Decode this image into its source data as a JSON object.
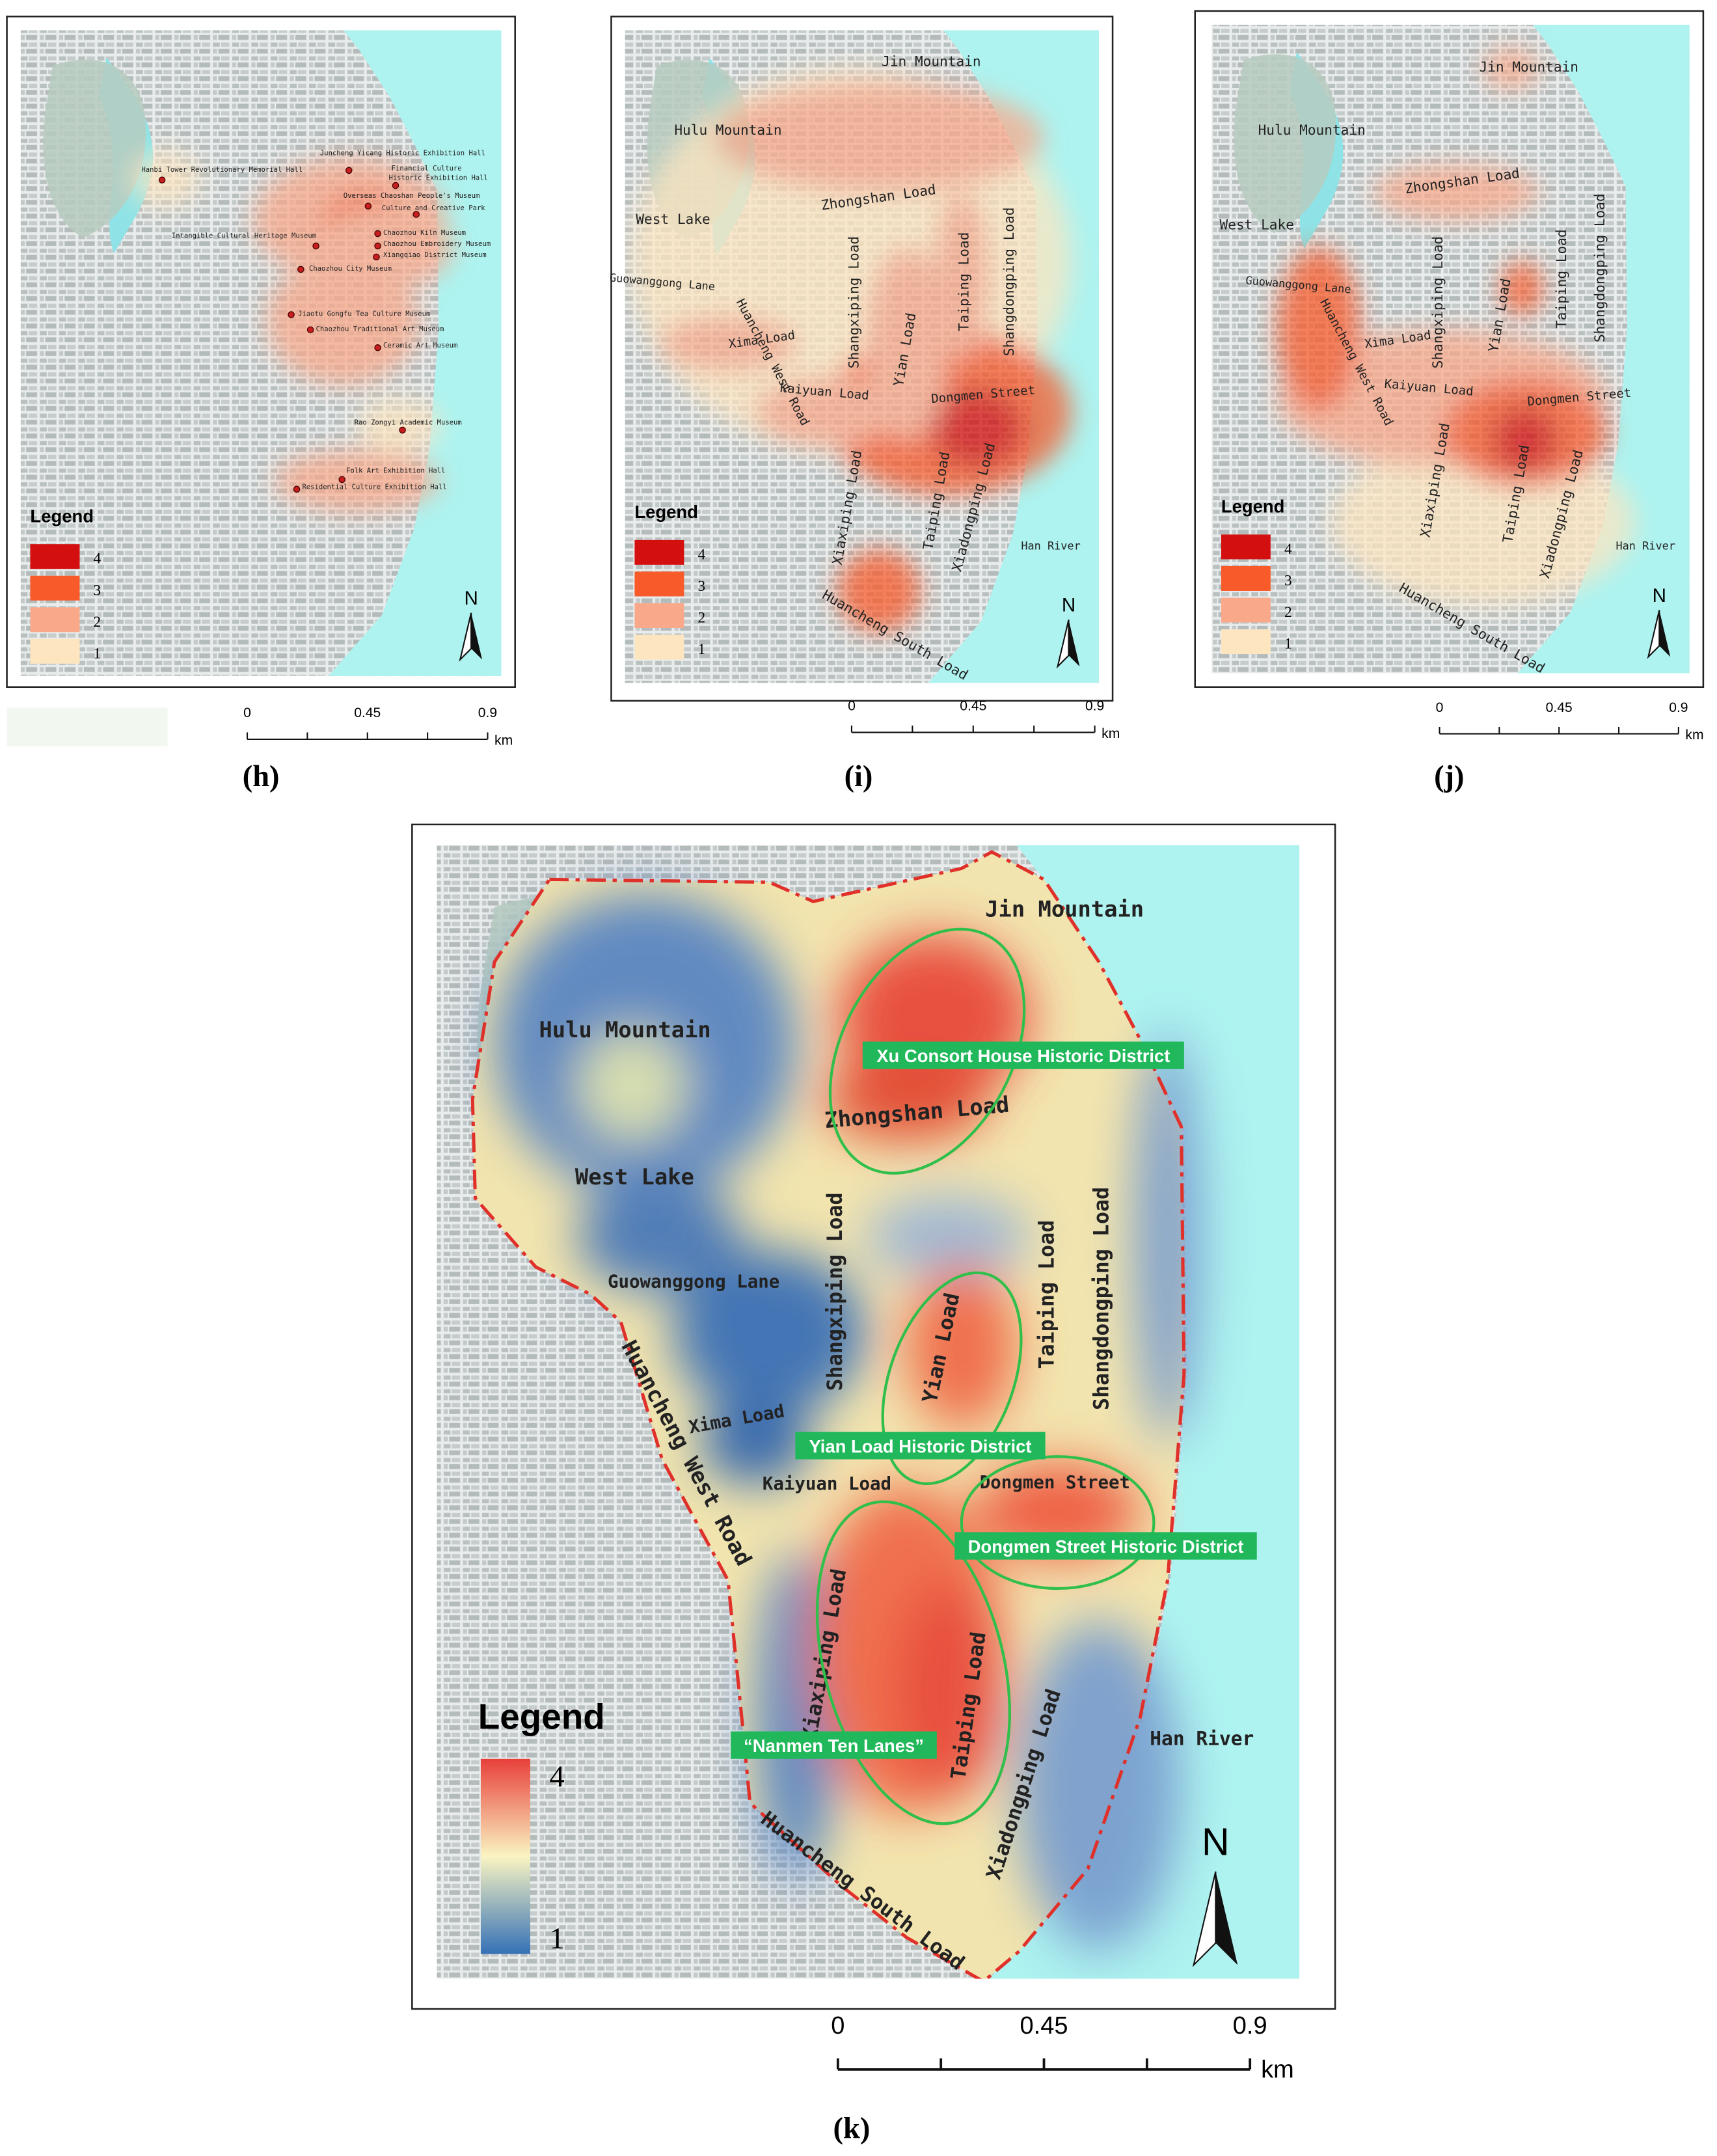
{
  "panels": [
    {
      "caption": "(h)",
      "legend": {
        "title": "Legend",
        "items": [
          "4",
          "3",
          "2",
          "1"
        ]
      },
      "scale": {
        "ticks": [
          "0",
          "0.45",
          "0.9"
        ],
        "unit": "km"
      },
      "north": "N",
      "labels": [
        "Hanbi Tower Revolutionary Memorial Hall",
        "Juncheng Yicang Historic Exhibition Hall",
        "Financial Culture",
        "Historic Exhibition Hall",
        "Overseas Chaoshan People's Museum",
        "Culture and Creative Park",
        "Intangible Cultural Heritage Museum",
        "Chaozhou Kiln Museum",
        "Chaozhou Embroidery Museum",
        "Xiangqiao District Museum",
        "Chaozhou City Museum",
        "Jiaotu Gongfu Tea Culture Museum",
        "Chaozhou Traditional Art Museum",
        "Ceramic Art Museum",
        "Rao Zongyi Academic Museum",
        "Folk Art Exhibition Hall",
        "Residential Culture Exhibition Hall"
      ]
    },
    {
      "caption": "(i)",
      "legend": {
        "title": "Legend",
        "items": [
          "4",
          "3",
          "2",
          "1"
        ]
      },
      "scale": {
        "ticks": [
          "0",
          "0.45",
          "0.9"
        ],
        "unit": "km"
      },
      "north": "N",
      "labels": [
        "Jin Mountain",
        "Hulu Mountain",
        "Zhongshan Load",
        "West Lake",
        "Guowanggong Lane",
        "Huancheng West Road",
        "Xima Load",
        "Shangxiping Load",
        "Yian Load",
        "Taiping Load",
        "Shangdongping Load",
        "Kaiyuan Load",
        "Dongmen Street",
        "Xiaxiping Load",
        "Taiping Load",
        "Xiadongping Load",
        "Han River",
        "Huancheng South Load"
      ]
    },
    {
      "caption": "(j)",
      "legend": {
        "title": "Legend",
        "items": [
          "4",
          "3",
          "2",
          "1"
        ]
      },
      "scale": {
        "ticks": [
          "0",
          "0.45",
          "0.9"
        ],
        "unit": "km"
      },
      "north": "N",
      "labels": [
        "Jin Mountain",
        "Hulu Mountain",
        "Zhongshan Load",
        "West Lake",
        "Guowanggong Lane",
        "Huancheng West Road",
        "Xima Load",
        "Shangxiping Load",
        "Yian Load",
        "Taiping Load",
        "Shangdongping Load",
        "Kaiyuan Load",
        "Dongmen Street",
        "Xiaxiping Load",
        "Taiping Load",
        "Xiadongping Load",
        "Han River",
        "Huancheng South Load"
      ]
    },
    {
      "caption": "(k)",
      "legend": {
        "title": "Legend",
        "items": [
          "4",
          "1"
        ]
      },
      "scale": {
        "ticks": [
          "0",
          "0.45",
          "0.9"
        ],
        "unit": "km"
      },
      "north": "N",
      "labels": [
        "Jin Mountain",
        "Hulu Mountain",
        "Zhongshan Load",
        "West Lake",
        "Guowanggong Lane",
        "Shangxiping Load",
        "Yian Load",
        "Taiping Load",
        "Shangdongping Load",
        "Huancheng West Road",
        "Xima Load",
        "Kaiyuan Load",
        "Dongmen Street",
        "Xiaxiping Load",
        "Taiping Load",
        "Xiadongping Load",
        "Han River",
        "Huancheng South Load"
      ],
      "districts": [
        "Xu Consort House Historic District",
        "Yian Load Historic District",
        "Dongmen Street Historic District",
        "“Nanmen Ten Lanes”"
      ]
    }
  ]
}
